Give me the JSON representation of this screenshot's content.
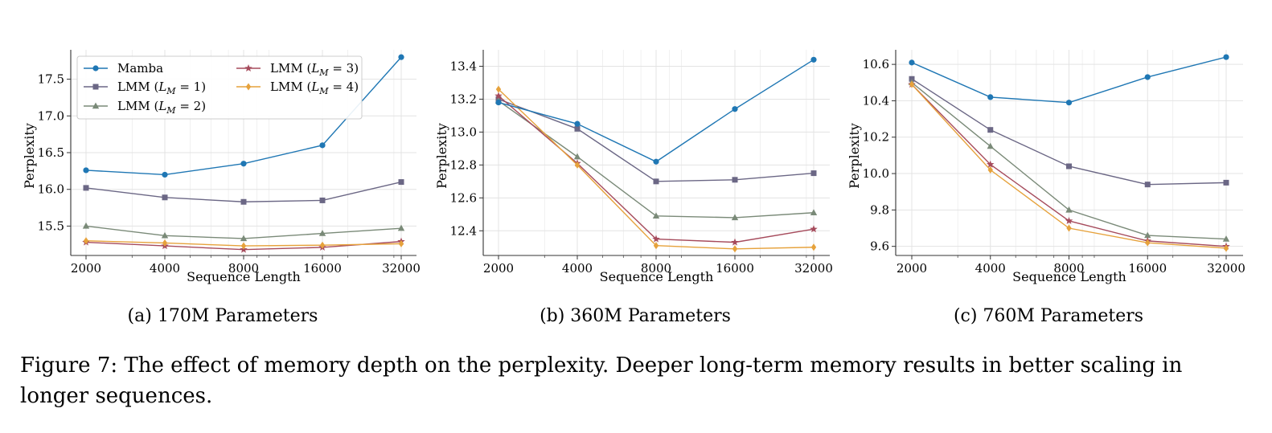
{
  "chart_data": [
    {
      "type": "line",
      "subcaption": "(a) 170M Parameters",
      "xlabel": "Sequence Length",
      "ylabel": "Perplexity",
      "x": [
        2000,
        4000,
        8000,
        16000,
        32000
      ],
      "x_tick_labels": [
        "2000",
        "4000",
        "8000",
        "16000",
        "32000"
      ],
      "x_scale": "log",
      "ylim": [
        15.1,
        17.9
      ],
      "y_ticks": [
        15.5,
        16.0,
        16.5,
        17.0,
        17.5
      ],
      "y_tick_labels": [
        "15.5",
        "16.0",
        "16.5",
        "17.0",
        "17.5"
      ],
      "grid": true,
      "legend_position": "top-left",
      "series": [
        {
          "name": "Mamba",
          "marker": "circle",
          "color": "#1f77b4",
          "values": [
            16.26,
            16.2,
            16.35,
            16.6,
            17.8
          ]
        },
        {
          "name": "LMM (L_M = 1)",
          "marker": "square",
          "color": "#6b6785",
          "values": [
            16.02,
            15.89,
            15.83,
            15.85,
            16.1
          ]
        },
        {
          "name": "LMM (L_M = 2)",
          "marker": "triangle",
          "color": "#7a8a78",
          "values": [
            15.5,
            15.37,
            15.33,
            15.4,
            15.47
          ]
        },
        {
          "name": "LMM (L_M = 3)",
          "marker": "star",
          "color": "#a64b5c",
          "values": [
            15.28,
            15.23,
            15.18,
            15.21,
            15.29
          ]
        },
        {
          "name": "LMM (L_M = 4)",
          "marker": "diamond",
          "color": "#e6a23c",
          "values": [
            15.3,
            15.27,
            15.23,
            15.24,
            15.26
          ]
        }
      ]
    },
    {
      "type": "line",
      "subcaption": "(b) 360M Parameters",
      "xlabel": "Sequence Length",
      "ylabel": "Perplexity",
      "x": [
        2000,
        4000,
        8000,
        16000,
        32000
      ],
      "x_tick_labels": [
        "2000",
        "4000",
        "8000",
        "16000",
        "32000"
      ],
      "x_scale": "log",
      "ylim": [
        12.25,
        13.5
      ],
      "y_ticks": [
        12.4,
        12.6,
        12.8,
        13.0,
        13.2,
        13.4
      ],
      "y_tick_labels": [
        "12.4",
        "12.6",
        "12.8",
        "13.0",
        "13.2",
        "13.4"
      ],
      "grid": true,
      "series": [
        {
          "name": "Mamba",
          "marker": "circle",
          "color": "#1f77b4",
          "values": [
            13.18,
            13.05,
            12.82,
            13.14,
            13.44
          ]
        },
        {
          "name": "LMM (L_M = 1)",
          "marker": "square",
          "color": "#6b6785",
          "values": [
            13.2,
            13.02,
            12.7,
            12.71,
            12.75
          ]
        },
        {
          "name": "LMM (L_M = 2)",
          "marker": "triangle",
          "color": "#7a8a78",
          "values": [
            13.19,
            12.85,
            12.49,
            12.48,
            12.51
          ]
        },
        {
          "name": "LMM (L_M = 3)",
          "marker": "star",
          "color": "#a64b5c",
          "values": [
            13.22,
            12.81,
            12.35,
            12.33,
            12.41
          ]
        },
        {
          "name": "LMM (L_M = 4)",
          "marker": "diamond",
          "color": "#e6a23c",
          "values": [
            13.26,
            12.8,
            12.31,
            12.29,
            12.3
          ]
        }
      ]
    },
    {
      "type": "line",
      "subcaption": "(c) 760M Parameters",
      "xlabel": "Sequence Length",
      "ylabel": "Perplexity",
      "x": [
        2000,
        4000,
        8000,
        16000,
        32000
      ],
      "x_tick_labels": [
        "2000",
        "4000",
        "8000",
        "16000",
        "32000"
      ],
      "x_scale": "log",
      "ylim": [
        9.55,
        10.68
      ],
      "y_ticks": [
        9.6,
        9.8,
        10.0,
        10.2,
        10.4,
        10.6
      ],
      "y_tick_labels": [
        "9.6",
        "9.8",
        "10.0",
        "10.2",
        "10.4",
        "10.6"
      ],
      "grid": true,
      "series": [
        {
          "name": "Mamba",
          "marker": "circle",
          "color": "#1f77b4",
          "values": [
            10.61,
            10.42,
            10.39,
            10.53,
            10.64
          ]
        },
        {
          "name": "LMM (L_M = 1)",
          "marker": "square",
          "color": "#6b6785",
          "values": [
            10.52,
            10.24,
            10.04,
            9.94,
            9.95
          ]
        },
        {
          "name": "LMM (L_M = 2)",
          "marker": "triangle",
          "color": "#7a8a78",
          "values": [
            10.5,
            10.15,
            9.8,
            9.66,
            9.64
          ]
        },
        {
          "name": "LMM (L_M = 3)",
          "marker": "star",
          "color": "#a64b5c",
          "values": [
            10.49,
            10.05,
            9.74,
            9.63,
            9.6
          ]
        },
        {
          "name": "LMM (L_M = 4)",
          "marker": "diamond",
          "color": "#e6a23c",
          "values": [
            10.49,
            10.02,
            9.7,
            9.62,
            9.59
          ]
        }
      ]
    }
  ],
  "figure_caption": "Figure 7: The effect of memory depth on the perplexity. Deeper long-term memory results in better scaling in longer sequences."
}
